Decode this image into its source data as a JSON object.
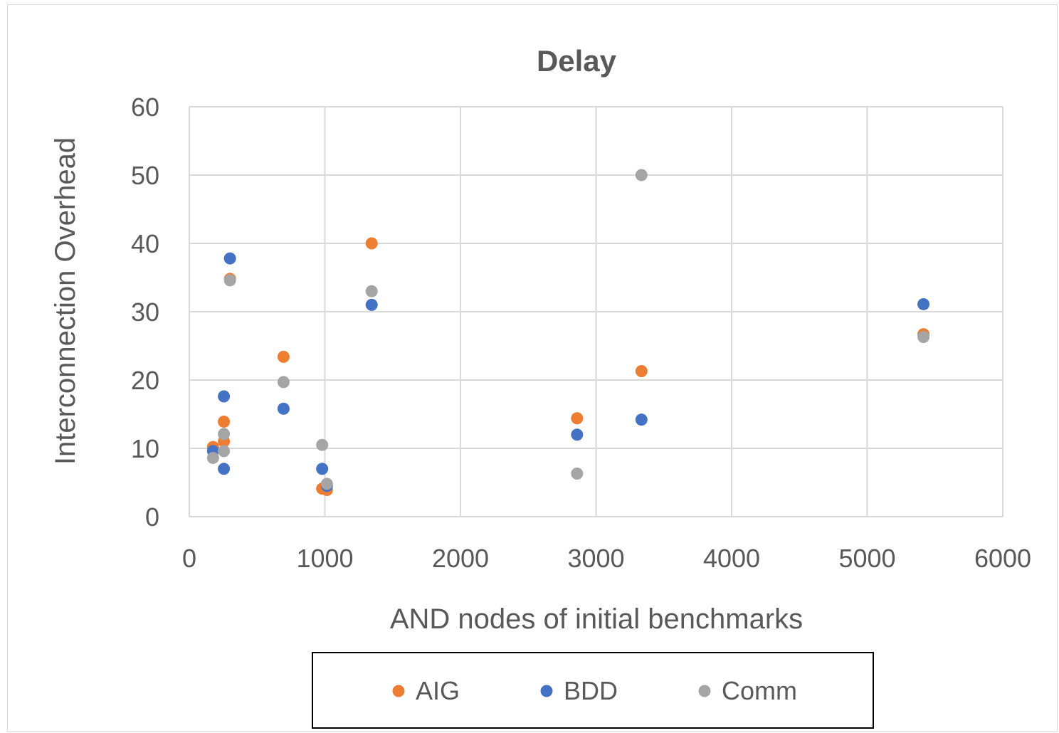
{
  "chart_data": {
    "type": "scatter",
    "title": "Delay",
    "xlabel": "AND nodes of initial benchmarks",
    "ylabel": "Interconnection Overhead",
    "xlim": [
      0,
      6000
    ],
    "ylim": [
      0,
      60
    ],
    "xticks": [
      0,
      1000,
      2000,
      3000,
      4000,
      5000,
      6000
    ],
    "yticks": [
      0,
      10,
      20,
      30,
      40,
      50,
      60
    ],
    "x_tick_labels": [
      "0",
      "1000",
      "2000",
      "3000",
      "4000",
      "5000",
      "6000"
    ],
    "y_tick_labels": [
      "0",
      "10",
      "20",
      "30",
      "40",
      "50",
      "60"
    ],
    "grid": true,
    "legend_position": "bottom",
    "series": [
      {
        "name": "AIG",
        "color": "#ED7D31",
        "points": [
          {
            "x": 175,
            "y": 10.2
          },
          {
            "x": 255,
            "y": 11.0
          },
          {
            "x": 255,
            "y": 13.9
          },
          {
            "x": 300,
            "y": 34.8
          },
          {
            "x": 695,
            "y": 23.4
          },
          {
            "x": 980,
            "y": 4.1
          },
          {
            "x": 1015,
            "y": 3.9
          },
          {
            "x": 1345,
            "y": 40.0
          },
          {
            "x": 2860,
            "y": 14.4
          },
          {
            "x": 3335,
            "y": 21.3
          },
          {
            "x": 5415,
            "y": 26.7
          }
        ]
      },
      {
        "name": "BDD",
        "color": "#4472C4",
        "points": [
          {
            "x": 175,
            "y": 9.6
          },
          {
            "x": 255,
            "y": 7.0
          },
          {
            "x": 255,
            "y": 17.6
          },
          {
            "x": 300,
            "y": 37.8
          },
          {
            "x": 695,
            "y": 15.8
          },
          {
            "x": 980,
            "y": 7.0
          },
          {
            "x": 1015,
            "y": 4.5
          },
          {
            "x": 1345,
            "y": 31.0
          },
          {
            "x": 2860,
            "y": 12.0
          },
          {
            "x": 3335,
            "y": 14.2
          },
          {
            "x": 5415,
            "y": 31.1
          }
        ]
      },
      {
        "name": "Comm",
        "color": "#A5A5A5",
        "points": [
          {
            "x": 175,
            "y": 8.6
          },
          {
            "x": 255,
            "y": 9.6
          },
          {
            "x": 255,
            "y": 12.1
          },
          {
            "x": 300,
            "y": 34.6
          },
          {
            "x": 695,
            "y": 19.7
          },
          {
            "x": 980,
            "y": 10.5
          },
          {
            "x": 1015,
            "y": 4.8
          },
          {
            "x": 1345,
            "y": 33.0
          },
          {
            "x": 2860,
            "y": 6.3
          },
          {
            "x": 3335,
            "y": 50.0
          },
          {
            "x": 5415,
            "y": 26.3
          }
        ]
      }
    ]
  }
}
